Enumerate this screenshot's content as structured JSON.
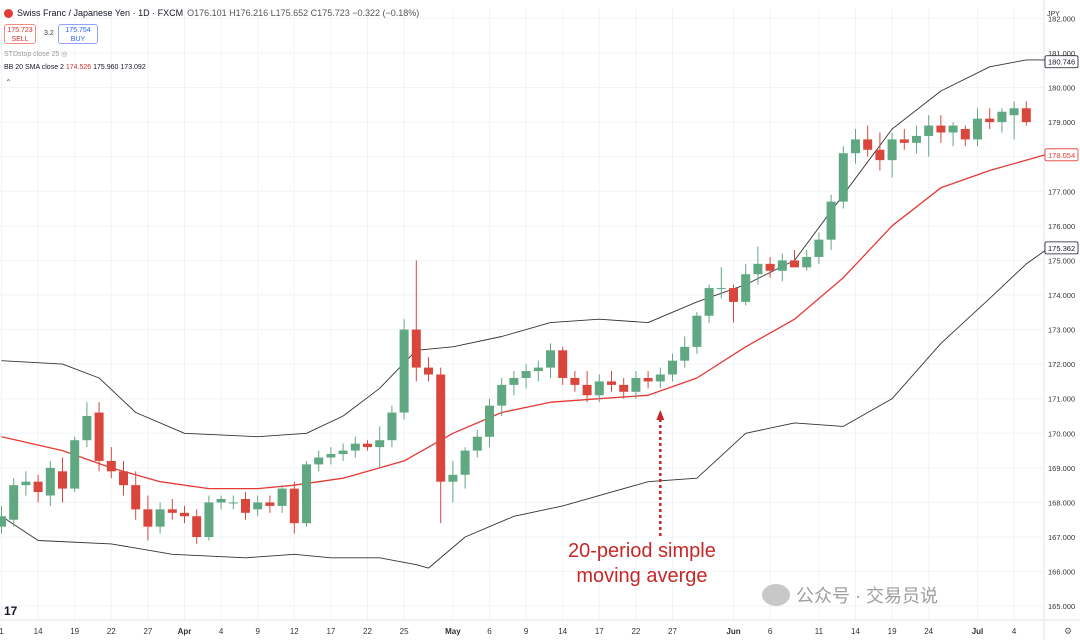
{
  "header": {
    "title": "Swiss Franc / Japanese Yen · 1D · FXCM",
    "ohlc": "O176.101 H176.216 L175.652 C175.723 −0.322 (−0.18%)",
    "sell_price": "175.723",
    "sell_label": "SELL",
    "spread": "3.2",
    "buy_price": "175.754",
    "buy_label": "BUY",
    "volume_indicator": "STDstop close 25",
    "bb_label": "BB 20 SMA close 2",
    "bb_mid": "174.526",
    "bb_upper": "175.960",
    "bb_lower": "173.092",
    "currency": "JPY"
  },
  "annotation": {
    "line1": "20-period simple",
    "line2": "moving averge"
  },
  "watermark": "公众号 · 交易员说",
  "logo": "17",
  "chart_data": {
    "type": "candlestick",
    "y_range": [
      164.6,
      182.3
    ],
    "y_ticks": [
      182,
      181,
      180,
      179,
      178,
      177,
      176,
      175,
      174,
      173,
      172,
      171,
      170,
      169,
      168,
      167,
      166,
      165
    ],
    "x_tick_labels": [
      "1",
      "14",
      "19",
      "22",
      "27",
      "Apr",
      "4",
      "9",
      "12",
      "17",
      "22",
      "25",
      "May",
      "6",
      "9",
      "14",
      "17",
      "22",
      "27",
      "Jun",
      "6",
      "11",
      "14",
      "19",
      "24",
      "Jul",
      "4"
    ],
    "tick_label_bar_index": [
      0,
      3,
      6,
      9,
      12,
      15,
      18,
      21,
      24,
      27,
      30,
      33,
      37,
      40,
      43,
      46,
      49,
      52,
      55,
      60,
      63,
      67,
      70,
      73,
      76,
      80,
      83
    ],
    "bars_visible": 87,
    "candles": [
      [
        167.3,
        167.9,
        167.1,
        167.6
      ],
      [
        167.5,
        168.7,
        167.3,
        168.5
      ],
      [
        168.5,
        168.9,
        168.2,
        168.6
      ],
      [
        168.6,
        168.8,
        168.0,
        168.3
      ],
      [
        168.2,
        169.2,
        167.9,
        169.0
      ],
      [
        168.9,
        169.3,
        168.0,
        168.4
      ],
      [
        168.4,
        169.9,
        168.3,
        169.8
      ],
      [
        169.8,
        170.9,
        169.6,
        170.5
      ],
      [
        170.6,
        170.9,
        168.9,
        169.2
      ],
      [
        169.2,
        169.6,
        168.7,
        168.9
      ],
      [
        168.9,
        169.2,
        168.2,
        168.5
      ],
      [
        168.5,
        168.9,
        167.5,
        167.8
      ],
      [
        167.8,
        168.2,
        166.9,
        167.3
      ],
      [
        167.3,
        168.0,
        167.1,
        167.8
      ],
      [
        167.8,
        168.1,
        167.5,
        167.7
      ],
      [
        167.7,
        167.9,
        167.4,
        167.6
      ],
      [
        167.6,
        167.8,
        166.8,
        167.0
      ],
      [
        167.0,
        168.2,
        166.9,
        168.0
      ],
      [
        168.0,
        168.2,
        167.8,
        168.1
      ],
      [
        168.0,
        168.2,
        167.8,
        168.0
      ],
      [
        168.1,
        168.3,
        167.5,
        167.7
      ],
      [
        167.8,
        168.2,
        167.6,
        168.0
      ],
      [
        168.0,
        168.2,
        167.7,
        167.9
      ],
      [
        167.9,
        168.5,
        167.7,
        168.4
      ],
      [
        168.4,
        168.6,
        167.1,
        167.4
      ],
      [
        167.4,
        169.2,
        167.3,
        169.1
      ],
      [
        169.1,
        169.5,
        168.9,
        169.3
      ],
      [
        169.3,
        169.6,
        169.1,
        169.4
      ],
      [
        169.4,
        169.7,
        169.2,
        169.5
      ],
      [
        169.5,
        169.9,
        169.3,
        169.7
      ],
      [
        169.7,
        169.8,
        169.5,
        169.6
      ],
      [
        169.6,
        170.2,
        169.0,
        169.8
      ],
      [
        169.8,
        170.8,
        169.6,
        170.6
      ],
      [
        170.6,
        173.3,
        170.4,
        173.0
      ],
      [
        173.0,
        175.0,
        171.5,
        171.9
      ],
      [
        171.9,
        172.2,
        171.5,
        171.7
      ],
      [
        171.7,
        171.9,
        167.4,
        168.6
      ],
      [
        168.6,
        169.2,
        168.0,
        168.8
      ],
      [
        168.8,
        169.6,
        168.4,
        169.5
      ],
      [
        169.5,
        170.1,
        169.3,
        169.9
      ],
      [
        169.9,
        171.0,
        169.6,
        170.8
      ],
      [
        170.8,
        171.6,
        170.5,
        171.4
      ],
      [
        171.4,
        171.8,
        171.1,
        171.6
      ],
      [
        171.6,
        172.0,
        171.3,
        171.8
      ],
      [
        171.8,
        172.1,
        171.5,
        171.9
      ],
      [
        171.9,
        172.6,
        171.6,
        172.4
      ],
      [
        172.4,
        172.5,
        171.4,
        171.6
      ],
      [
        171.6,
        171.8,
        171.2,
        171.4
      ],
      [
        171.4,
        171.8,
        170.9,
        171.1
      ],
      [
        171.1,
        171.7,
        170.9,
        171.5
      ],
      [
        171.5,
        171.8,
        171.2,
        171.4
      ],
      [
        171.4,
        171.6,
        171.0,
        171.2
      ],
      [
        171.2,
        171.8,
        171.0,
        171.6
      ],
      [
        171.6,
        171.8,
        171.3,
        171.5
      ],
      [
        171.5,
        171.9,
        171.3,
        171.7
      ],
      [
        171.7,
        172.3,
        171.5,
        172.1
      ],
      [
        172.1,
        172.8,
        171.9,
        172.5
      ],
      [
        172.5,
        173.5,
        172.3,
        173.4
      ],
      [
        173.4,
        174.3,
        173.2,
        174.2
      ],
      [
        174.2,
        174.8,
        173.9,
        174.2
      ],
      [
        174.2,
        174.3,
        173.2,
        173.8
      ],
      [
        173.8,
        174.9,
        173.7,
        174.6
      ],
      [
        174.6,
        175.4,
        174.3,
        174.9
      ],
      [
        174.9,
        175.1,
        174.5,
        174.7
      ],
      [
        174.7,
        175.2,
        174.4,
        175.0
      ],
      [
        175.0,
        175.3,
        174.8,
        174.8
      ],
      [
        174.8,
        175.3,
        174.7,
        175.1
      ],
      [
        175.1,
        175.8,
        174.9,
        175.6
      ],
      [
        175.6,
        176.9,
        175.3,
        176.7
      ],
      [
        176.7,
        178.3,
        176.5,
        178.1
      ],
      [
        178.1,
        178.8,
        177.8,
        178.5
      ],
      [
        178.5,
        178.9,
        178.0,
        178.2
      ],
      [
        178.2,
        178.7,
        177.6,
        177.9
      ],
      [
        177.9,
        178.7,
        177.4,
        178.5
      ],
      [
        178.5,
        178.8,
        178.2,
        178.4
      ],
      [
        178.4,
        178.9,
        178.1,
        178.6
      ],
      [
        178.6,
        179.2,
        178.0,
        178.9
      ],
      [
        178.9,
        179.2,
        178.4,
        178.7
      ],
      [
        178.7,
        179.0,
        178.3,
        178.9
      ],
      [
        178.8,
        178.9,
        178.3,
        178.5
      ],
      [
        178.5,
        179.4,
        178.3,
        179.1
      ],
      [
        179.1,
        179.4,
        178.8,
        179.0
      ],
      [
        179.0,
        179.4,
        178.7,
        179.3
      ],
      [
        179.2,
        179.6,
        178.5,
        179.4
      ],
      [
        179.4,
        179.6,
        178.9,
        179.0
      ]
    ],
    "sma20": [
      [
        0,
        169.9
      ],
      [
        5,
        169.5
      ],
      [
        9,
        169.0
      ],
      [
        13,
        168.6
      ],
      [
        17,
        168.4
      ],
      [
        21,
        168.4
      ],
      [
        24,
        168.5
      ],
      [
        28,
        168.7
      ],
      [
        33,
        169.2
      ],
      [
        37,
        170.0
      ],
      [
        41,
        170.6
      ],
      [
        45,
        170.9
      ],
      [
        49,
        171.0
      ],
      [
        53,
        171.1
      ],
      [
        57,
        171.6
      ],
      [
        61,
        172.5
      ],
      [
        65,
        173.3
      ],
      [
        69,
        174.5
      ],
      [
        73,
        176.0
      ],
      [
        77,
        177.1
      ],
      [
        81,
        177.6
      ],
      [
        86,
        178.1
      ]
    ],
    "bb_upper": [
      [
        0,
        172.1
      ],
      [
        5,
        172.0
      ],
      [
        8,
        171.6
      ],
      [
        11,
        170.6
      ],
      [
        15,
        170.0
      ],
      [
        21,
        169.9
      ],
      [
        25,
        170.0
      ],
      [
        28,
        170.5
      ],
      [
        31,
        171.3
      ],
      [
        34,
        172.4
      ],
      [
        37,
        172.5
      ],
      [
        41,
        172.8
      ],
      [
        45,
        173.2
      ],
      [
        49,
        173.3
      ],
      [
        53,
        173.2
      ],
      [
        57,
        173.8
      ],
      [
        61,
        174.3
      ],
      [
        65,
        175.0
      ],
      [
        69,
        176.9
      ],
      [
        73,
        178.8
      ],
      [
        77,
        179.9
      ],
      [
        81,
        180.6
      ],
      [
        84,
        180.8
      ],
      [
        86,
        180.8
      ]
    ],
    "bb_lower": [
      [
        0,
        167.6
      ],
      [
        3,
        166.9
      ],
      [
        9,
        166.8
      ],
      [
        14,
        166.5
      ],
      [
        20,
        166.4
      ],
      [
        24,
        166.5
      ],
      [
        27,
        166.4
      ],
      [
        31,
        166.4
      ],
      [
        34,
        166.2
      ],
      [
        35,
        166.1
      ],
      [
        38,
        167.0
      ],
      [
        42,
        167.6
      ],
      [
        46,
        167.9
      ],
      [
        50,
        168.3
      ],
      [
        53,
        168.6
      ],
      [
        57,
        168.7
      ],
      [
        61,
        170.0
      ],
      [
        65,
        170.3
      ],
      [
        69,
        170.2
      ],
      [
        73,
        171.0
      ],
      [
        77,
        172.6
      ],
      [
        81,
        173.9
      ],
      [
        84,
        174.9
      ],
      [
        86,
        175.4
      ]
    ],
    "price_labels": [
      {
        "text": "180.746",
        "value": 180.746,
        "style": "dark"
      },
      {
        "text": "178.054",
        "value": 178.054,
        "style": "red"
      },
      {
        "text": "175.362",
        "value": 175.362,
        "style": "dark"
      }
    ],
    "colors": {
      "up": "#5fa882",
      "down": "#d9473c",
      "sma": "#e53935",
      "bands": "#333333",
      "annotation": "#c62828",
      "grid": "#f0f3fa"
    }
  }
}
